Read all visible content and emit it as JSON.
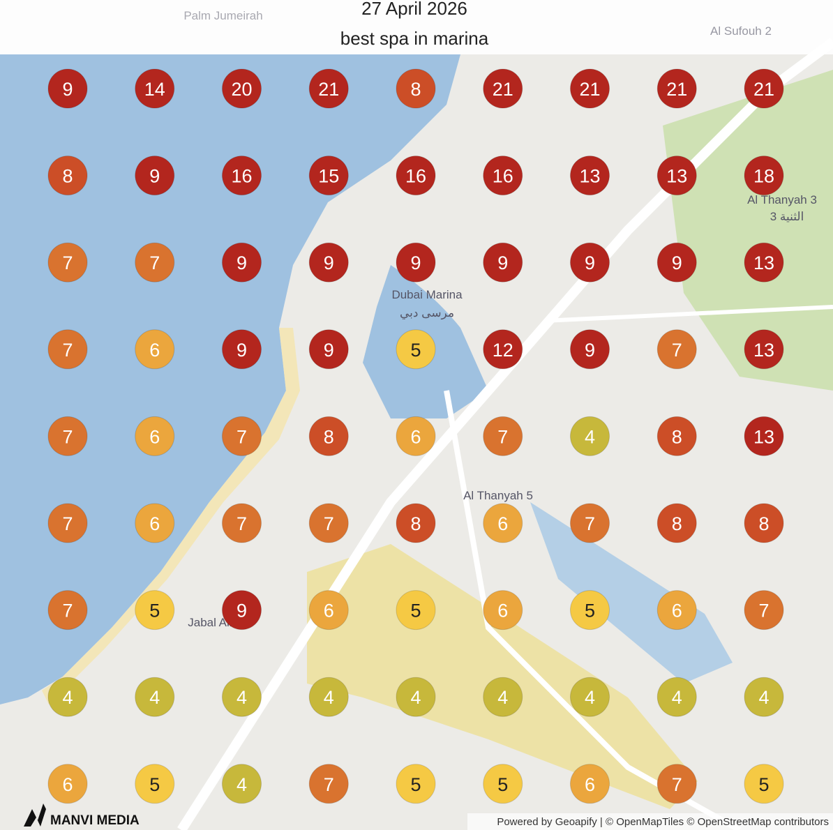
{
  "header": {
    "date": "27 April 2026",
    "title": "best spa in marina"
  },
  "grid": {
    "rows": [
      [
        9,
        14,
        20,
        21,
        8,
        21,
        21,
        21,
        21
      ],
      [
        8,
        9,
        16,
        15,
        16,
        16,
        13,
        13,
        18
      ],
      [
        7,
        7,
        9,
        9,
        9,
        9,
        9,
        9,
        13
      ],
      [
        7,
        6,
        9,
        9,
        5,
        12,
        9,
        7,
        13
      ],
      [
        7,
        6,
        7,
        8,
        6,
        7,
        4,
        8,
        13
      ],
      [
        7,
        6,
        7,
        7,
        8,
        6,
        7,
        8,
        8
      ],
      [
        7,
        5,
        9,
        6,
        5,
        6,
        5,
        6,
        7
      ],
      [
        4,
        4,
        4,
        4,
        4,
        4,
        4,
        4,
        4
      ],
      [
        6,
        5,
        4,
        7,
        5,
        5,
        6,
        7,
        5
      ]
    ]
  },
  "map_labels": [
    "Dubai Marina",
    "مرسى دبي",
    "Al Thanyah 5",
    "Al Thanyah 3",
    "الثنية 3",
    "Jabal Ali 2",
    "Al Sufouh 2",
    "Palm Jumeirah"
  ],
  "footer": {
    "brand": "MANVI MEDIA",
    "attribution": "Powered by Geoapify | © OpenMapTiles © OpenStreetMap contributors"
  }
}
